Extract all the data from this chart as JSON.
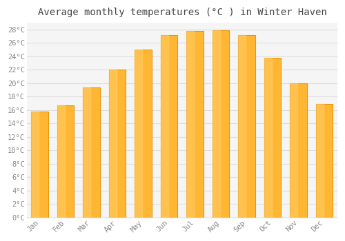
{
  "title": "Average monthly temperatures (°C ) in Winter Haven",
  "months": [
    "Jan",
    "Feb",
    "Mar",
    "Apr",
    "May",
    "Jun",
    "Jul",
    "Aug",
    "Sep",
    "Oct",
    "Nov",
    "Dec"
  ],
  "values": [
    15.8,
    16.7,
    19.4,
    22.0,
    25.0,
    27.2,
    27.8,
    27.9,
    27.2,
    23.8,
    20.0,
    16.9
  ],
  "bar_color_top": "#FFB733",
  "bar_color_bottom": "#FFA500",
  "bar_color_left": "#E8950A",
  "background_color": "#FFFFFF",
  "plot_bg_color": "#F5F5F5",
  "grid_color": "#DDDDDD",
  "ytick_step": 2,
  "ymax": 29,
  "title_fontsize": 10,
  "tick_fontsize": 7.5,
  "tick_color": "#888888",
  "title_color": "#444444",
  "font_family": "monospace"
}
